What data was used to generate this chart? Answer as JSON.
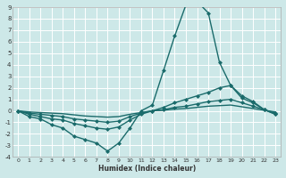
{
  "xlabel": "Humidex (Indice chaleur)",
  "xlim": [
    -0.5,
    23.5
  ],
  "ylim": [
    -4,
    9
  ],
  "xticks": [
    0,
    1,
    2,
    3,
    4,
    5,
    6,
    7,
    8,
    9,
    10,
    11,
    12,
    13,
    14,
    15,
    16,
    17,
    18,
    19,
    20,
    21,
    22,
    23
  ],
  "yticks": [
    -4,
    -3,
    -2,
    -1,
    0,
    1,
    2,
    3,
    4,
    5,
    6,
    7,
    8,
    9
  ],
  "bg_color": "#cde8e8",
  "grid_color": "#b8d4d4",
  "line_color": "#1a6b6b",
  "series": [
    {
      "x": [
        0,
        1,
        2,
        3,
        4,
        5,
        6,
        7,
        8,
        9,
        10,
        11,
        12,
        13,
        14,
        15,
        16,
        17,
        18,
        19,
        20,
        21,
        22,
        23
      ],
      "y": [
        0,
        -0.5,
        -0.7,
        -1.2,
        -1.5,
        -2.2,
        -2.5,
        -2.8,
        -3.5,
        -2.8,
        -1.5,
        0.0,
        0.5,
        3.5,
        6.5,
        9.2,
        9.5,
        8.5,
        4.2,
        2.2,
        1.1,
        0.7,
        0.1,
        -0.3
      ],
      "marker": "D",
      "markersize": 2.0,
      "linewidth": 1.0
    },
    {
      "x": [
        0,
        1,
        2,
        3,
        4,
        5,
        6,
        7,
        8,
        9,
        10,
        11,
        12,
        13,
        14,
        15,
        16,
        17,
        18,
        19,
        20,
        21,
        22,
        23
      ],
      "y": [
        0,
        -0.3,
        -0.5,
        -0.7,
        -0.8,
        -1.1,
        -1.3,
        -1.5,
        -1.6,
        -1.4,
        -0.8,
        -0.3,
        0.0,
        0.3,
        0.7,
        1.0,
        1.3,
        1.6,
        2.0,
        2.2,
        1.3,
        0.8,
        0.1,
        -0.3
      ],
      "marker": "D",
      "markersize": 2.0,
      "linewidth": 1.0
    },
    {
      "x": [
        0,
        1,
        2,
        3,
        4,
        5,
        6,
        7,
        8,
        9,
        10,
        11,
        12,
        13,
        14,
        15,
        16,
        17,
        18,
        19,
        20,
        21,
        22,
        23
      ],
      "y": [
        0,
        -0.2,
        -0.3,
        -0.4,
        -0.5,
        -0.7,
        -0.8,
        -0.9,
        -1.0,
        -0.9,
        -0.5,
        -0.2,
        0.0,
        0.1,
        0.3,
        0.4,
        0.6,
        0.8,
        0.9,
        1.0,
        0.7,
        0.4,
        0.1,
        -0.2
      ],
      "marker": "D",
      "markersize": 2.0,
      "linewidth": 1.0
    },
    {
      "x": [
        0,
        1,
        2,
        3,
        4,
        5,
        6,
        7,
        8,
        9,
        10,
        11,
        12,
        13,
        14,
        15,
        16,
        17,
        18,
        19,
        20,
        21,
        22,
        23
      ],
      "y": [
        0,
        -0.1,
        -0.15,
        -0.2,
        -0.25,
        -0.35,
        -0.45,
        -0.5,
        -0.55,
        -0.5,
        -0.3,
        -0.15,
        0.0,
        0.05,
        0.15,
        0.2,
        0.3,
        0.4,
        0.45,
        0.5,
        0.35,
        0.2,
        0.05,
        -0.1
      ],
      "marker": null,
      "markersize": 0,
      "linewidth": 1.0
    }
  ]
}
